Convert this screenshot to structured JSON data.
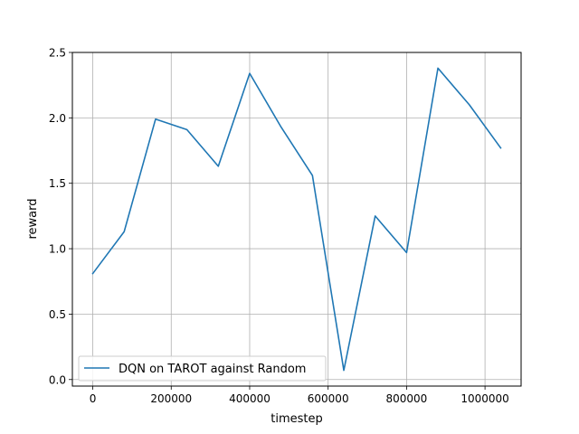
{
  "chart_data": {
    "type": "line",
    "title": "",
    "xlabel": "timestep",
    "ylabel": "reward",
    "xlim": [
      -52000,
      1092000
    ],
    "ylim": [
      -0.05,
      2.5
    ],
    "xticks": [
      0,
      200000,
      400000,
      600000,
      800000,
      1000000
    ],
    "xtick_labels": [
      "0",
      "200000",
      "400000",
      "600000",
      "800000",
      "1000000"
    ],
    "yticks": [
      0.0,
      0.5,
      1.0,
      1.5,
      2.0,
      2.5
    ],
    "ytick_labels": [
      "0.0",
      "0.5",
      "1.0",
      "1.5",
      "2.0",
      "2.5"
    ],
    "grid": true,
    "legend_position": "lower-left",
    "series": [
      {
        "name": "DQN on TAROT against Random",
        "color": "#1f77b4",
        "x": [
          0,
          80000,
          160000,
          240000,
          320000,
          400000,
          480000,
          560000,
          640000,
          720000,
          800000,
          880000,
          960000,
          1040000
        ],
        "y": [
          0.81,
          1.13,
          1.99,
          1.91,
          1.63,
          2.34,
          1.93,
          1.56,
          0.07,
          1.25,
          0.97,
          2.38,
          2.1,
          1.77
        ]
      }
    ]
  }
}
